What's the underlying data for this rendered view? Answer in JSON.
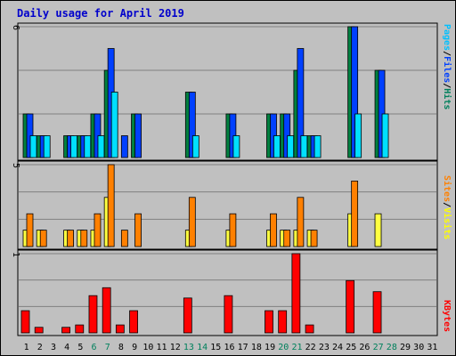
{
  "chart_data": {
    "type": "bar",
    "title": "Daily usage for April 2019",
    "x": [
      1,
      2,
      3,
      4,
      5,
      6,
      7,
      8,
      9,
      10,
      11,
      12,
      13,
      14,
      15,
      16,
      17,
      18,
      19,
      20,
      21,
      22,
      23,
      24,
      25,
      26,
      27,
      28,
      29,
      30,
      31
    ],
    "x_label_colors": {
      "default": "#000000",
      "weekend": "#00805c",
      "weekend_days": [
        6,
        7,
        13,
        14,
        20,
        21,
        27,
        28
      ]
    },
    "panels": [
      {
        "id": "hits-files-pages",
        "ymax_label": "6",
        "ymax": 6,
        "right_label_parts": [
          {
            "text": "Pages",
            "color": "#00c0ff"
          },
          {
            "text": "/",
            "color": "#000000"
          },
          {
            "text": "Files",
            "color": "#0040ff"
          },
          {
            "text": "/",
            "color": "#000000"
          },
          {
            "text": "Hits",
            "color": "#00805c"
          }
        ],
        "series": [
          {
            "name": "Hits",
            "color": "#008040",
            "values": [
              2,
              1,
              0,
              1,
              1,
              2,
              4,
              0,
              2,
              0,
              0,
              0,
              3,
              0,
              0,
              2,
              0,
              0,
              2,
              2,
              4,
              1,
              0,
              0,
              6,
              0,
              4,
              0,
              0,
              0,
              0
            ]
          },
          {
            "name": "Files",
            "color": "#0040ff",
            "values": [
              2,
              1,
              0,
              1,
              1,
              2,
              5,
              1,
              2,
              0,
              0,
              0,
              3,
              0,
              0,
              2,
              0,
              0,
              2,
              2,
              5,
              1,
              0,
              0,
              6,
              0,
              4,
              0,
              0,
              0,
              0
            ]
          },
          {
            "name": "Pages",
            "color": "#00e0ff",
            "values": [
              1,
              1,
              0,
              1,
              1,
              1,
              3,
              0,
              0,
              0,
              0,
              0,
              1,
              0,
              0,
              1,
              0,
              0,
              1,
              1,
              1,
              1,
              0,
              0,
              2,
              0,
              2,
              0,
              0,
              0,
              0
            ]
          }
        ]
      },
      {
        "id": "visits-sites",
        "ymax_label": "5",
        "ymax": 5,
        "right_label_parts": [
          {
            "text": "Sites",
            "color": "#ff8000"
          },
          {
            "text": "/",
            "color": "#000000"
          },
          {
            "text": "Visits",
            "color": "#ffff00"
          }
        ],
        "series": [
          {
            "name": "Visits",
            "color": "#ffff40",
            "values": [
              1,
              1,
              0,
              1,
              1,
              1,
              3,
              0,
              0,
              0,
              0,
              0,
              1,
              0,
              0,
              1,
              0,
              0,
              1,
              1,
              1,
              1,
              0,
              0,
              2,
              0,
              2,
              0,
              0,
              0,
              0
            ]
          },
          {
            "name": "Sites",
            "color": "#ff8000",
            "values": [
              2,
              1,
              0,
              1,
              1,
              2,
              5,
              1,
              2,
              0,
              0,
              0,
              3,
              0,
              0,
              2,
              0,
              0,
              2,
              1,
              3,
              1,
              0,
              0,
              4,
              0,
              0,
              0,
              0,
              0,
              0
            ]
          }
        ]
      },
      {
        "id": "kbytes",
        "ymax_label": "1",
        "ymax": 1,
        "right_label_parts": [
          {
            "text": "KBytes",
            "color": "#ff0000"
          }
        ],
        "series": [
          {
            "name": "KBytes",
            "color": "#ff0000",
            "values": [
              0.28,
              0.07,
              0,
              0.07,
              0.1,
              0.47,
              0.57,
              0.1,
              0.28,
              0,
              0,
              0,
              0.44,
              0,
              0,
              0.47,
              0,
              0,
              0.28,
              0.28,
              1.0,
              0.1,
              0,
              0,
              0.66,
              0,
              0.52,
              0,
              0,
              0,
              0
            ]
          }
        ]
      }
    ]
  }
}
